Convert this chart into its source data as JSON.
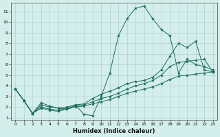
{
  "title": "",
  "xlabel": "Humidex (Indice chaleur)",
  "ylabel": "",
  "bg_color": "#d4eeeb",
  "grid_color": "#aed4d0",
  "line_color": "#1a6b5a",
  "xlim": [
    -0.5,
    23.5
  ],
  "ylim": [
    0.8,
    11.8
  ],
  "xticks": [
    0,
    1,
    2,
    3,
    4,
    5,
    6,
    7,
    8,
    9,
    10,
    11,
    12,
    13,
    14,
    15,
    16,
    17,
    18,
    19,
    20,
    21,
    22,
    23
  ],
  "yticks": [
    1,
    2,
    3,
    4,
    5,
    6,
    7,
    8,
    9,
    10,
    11
  ],
  "curve1_x": [
    0,
    1,
    2,
    3,
    4,
    5,
    6,
    7,
    8,
    9,
    10,
    11,
    12,
    13,
    14,
    15,
    16,
    17,
    18,
    19,
    20,
    21,
    22,
    23
  ],
  "curve1_y": [
    3.7,
    2.6,
    1.4,
    2.4,
    2.1,
    1.9,
    1.8,
    2.2,
    1.3,
    1.2,
    3.0,
    5.2,
    8.7,
    10.3,
    11.3,
    11.5,
    10.3,
    9.3,
    8.7,
    5.2,
    6.5,
    6.0,
    5.8,
    5.5
  ],
  "curve2_x": [
    0,
    1,
    2,
    3,
    4,
    5,
    6,
    7,
    8,
    9,
    10,
    11,
    12,
    13,
    14,
    15,
    16,
    17,
    18,
    19,
    20,
    21,
    22,
    23
  ],
  "curve2_y": [
    3.7,
    2.6,
    1.4,
    2.2,
    2.0,
    1.9,
    2.0,
    2.2,
    2.3,
    2.8,
    3.2,
    3.5,
    3.8,
    4.2,
    4.4,
    4.5,
    4.8,
    5.5,
    6.8,
    8.0,
    7.6,
    8.2,
    5.5,
    5.3
  ],
  "curve3_x": [
    0,
    1,
    2,
    3,
    4,
    5,
    6,
    7,
    8,
    9,
    10,
    11,
    12,
    13,
    14,
    15,
    16,
    17,
    18,
    19,
    20,
    21,
    22,
    23
  ],
  "curve3_y": [
    3.7,
    2.6,
    1.4,
    2.0,
    1.8,
    1.7,
    1.9,
    2.1,
    2.2,
    2.5,
    2.8,
    3.0,
    3.3,
    3.7,
    4.0,
    4.2,
    4.5,
    5.0,
    5.8,
    6.2,
    6.3,
    6.4,
    6.5,
    5.3
  ],
  "curve4_x": [
    0,
    1,
    2,
    3,
    4,
    5,
    6,
    7,
    8,
    9,
    10,
    11,
    12,
    13,
    14,
    15,
    16,
    17,
    18,
    19,
    20,
    21,
    22,
    23
  ],
  "curve4_y": [
    3.7,
    2.6,
    1.4,
    1.9,
    1.7,
    1.6,
    1.8,
    2.0,
    2.1,
    2.3,
    2.5,
    2.7,
    3.0,
    3.3,
    3.5,
    3.7,
    3.9,
    4.2,
    4.6,
    4.9,
    5.0,
    5.1,
    5.2,
    5.3
  ]
}
